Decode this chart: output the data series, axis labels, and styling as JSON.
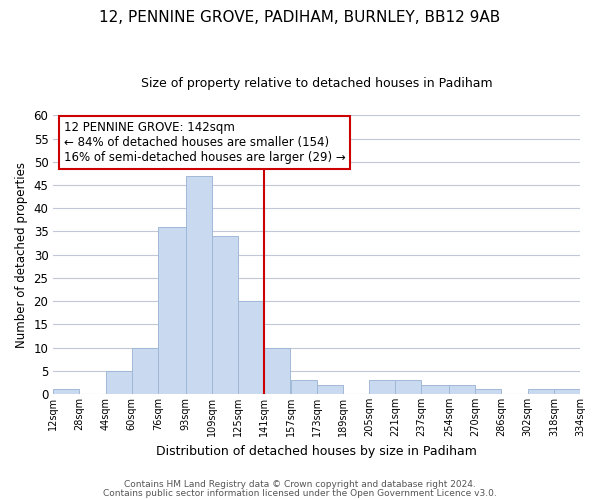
{
  "title": "12, PENNINE GROVE, PADIHAM, BURNLEY, BB12 9AB",
  "subtitle": "Size of property relative to detached houses in Padiham",
  "xlabel": "Distribution of detached houses by size in Padiham",
  "ylabel": "Number of detached properties",
  "bin_edges": [
    12,
    28,
    44,
    60,
    76,
    93,
    109,
    125,
    141,
    157,
    173,
    189,
    205,
    221,
    237,
    254,
    270,
    286,
    302,
    318,
    334
  ],
  "bin_counts": [
    1,
    0,
    5,
    10,
    36,
    47,
    34,
    20,
    10,
    3,
    2,
    0,
    3,
    3,
    2,
    2,
    1,
    0,
    1,
    1
  ],
  "bar_color": "#c9d9f0",
  "bar_edgecolor": "#a0b8d8",
  "ref_line_x": 141,
  "ref_line_color": "#cc0000",
  "ylim": [
    0,
    60
  ],
  "annotation_title": "12 PENNINE GROVE: 142sqm",
  "annotation_line1": "← 84% of detached houses are smaller (154)",
  "annotation_line2": "16% of semi-detached houses are larger (29) →",
  "annotation_box_color": "#ffffff",
  "annotation_box_edgecolor": "#cc0000",
  "tick_labels": [
    "12sqm",
    "28sqm",
    "44sqm",
    "60sqm",
    "76sqm",
    "93sqm",
    "109sqm",
    "125sqm",
    "141sqm",
    "157sqm",
    "173sqm",
    "189sqm",
    "205sqm",
    "221sqm",
    "237sqm",
    "254sqm",
    "270sqm",
    "286sqm",
    "302sqm",
    "318sqm",
    "334sqm"
  ],
  "footer1": "Contains HM Land Registry data © Crown copyright and database right 2024.",
  "footer2": "Contains public sector information licensed under the Open Government Licence v3.0.",
  "background_color": "#ffffff",
  "grid_color": "#c0c8d8",
  "yticks": [
    0,
    5,
    10,
    15,
    20,
    25,
    30,
    35,
    40,
    45,
    50,
    55,
    60
  ]
}
